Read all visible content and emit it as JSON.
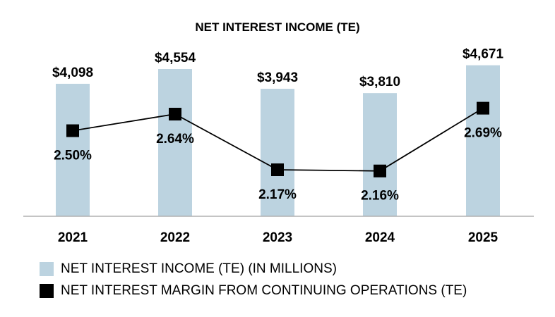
{
  "chart_data": {
    "type": "bar",
    "title": "NET INTEREST INCOME (TE)",
    "categories": [
      "2021",
      "2022",
      "2023",
      "2024",
      "2025"
    ],
    "series": [
      {
        "name": "NET INTEREST INCOME (TE) (IN MILLIONS)",
        "kind": "bar",
        "values": [
          4098,
          4554,
          3943,
          3810,
          4671
        ],
        "labels": [
          "$4,098",
          "$4,554",
          "$3,943",
          "$3,810",
          "$4,671"
        ],
        "color": "#bcd3e0"
      },
      {
        "name": "NET INTEREST MARGIN FROM CONTINUING OPERATIONS (TE)",
        "kind": "line",
        "values": [
          2.5,
          2.64,
          2.17,
          2.16,
          2.69
        ],
        "labels": [
          "2.50%",
          "2.64%",
          "2.17%",
          "2.16%",
          "2.69%"
        ],
        "color": "#000000"
      }
    ],
    "ylim": [
      0,
      5000
    ],
    "y2lim": [
      1.5,
      2.9
    ],
    "xlabel": "",
    "ylabel": "",
    "grid": false,
    "legend": "bottom"
  }
}
